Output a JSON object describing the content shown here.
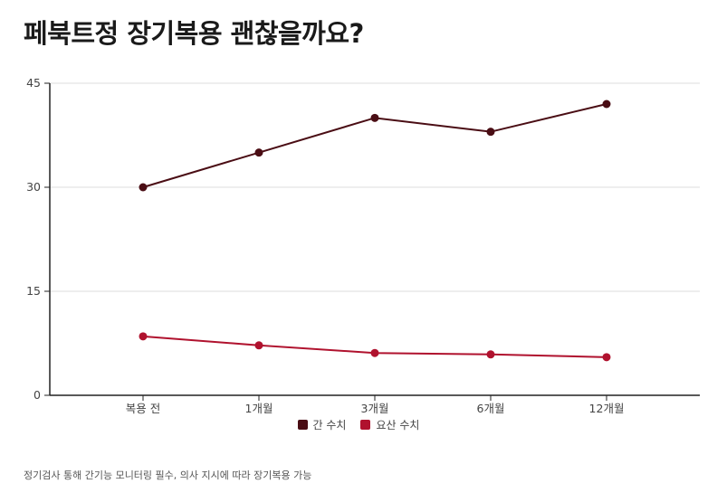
{
  "chart_data": {
    "type": "line",
    "title": "페북트정 장기복용 괜찮을까요?",
    "categories": [
      "복용 전",
      "1개월",
      "3개월",
      "6개월",
      "12개월"
    ],
    "series": [
      {
        "name": "간 수치",
        "color": "#4a0d14",
        "values": [
          30,
          35,
          40,
          38,
          42
        ]
      },
      {
        "name": "요산 수치",
        "color": "#b0122e",
        "values": [
          8.5,
          7.2,
          6.1,
          5.9,
          5.5
        ]
      }
    ],
    "yticks": [
      0,
      15,
      30,
      45
    ],
    "ylim": [
      0,
      45
    ],
    "grid": true,
    "legend": "bottom",
    "xlabel": "",
    "ylabel": ""
  },
  "footnote": "정기검사 통해 간기능 모니터링 필수, 의사 지시에 따라 장기복용 가능"
}
